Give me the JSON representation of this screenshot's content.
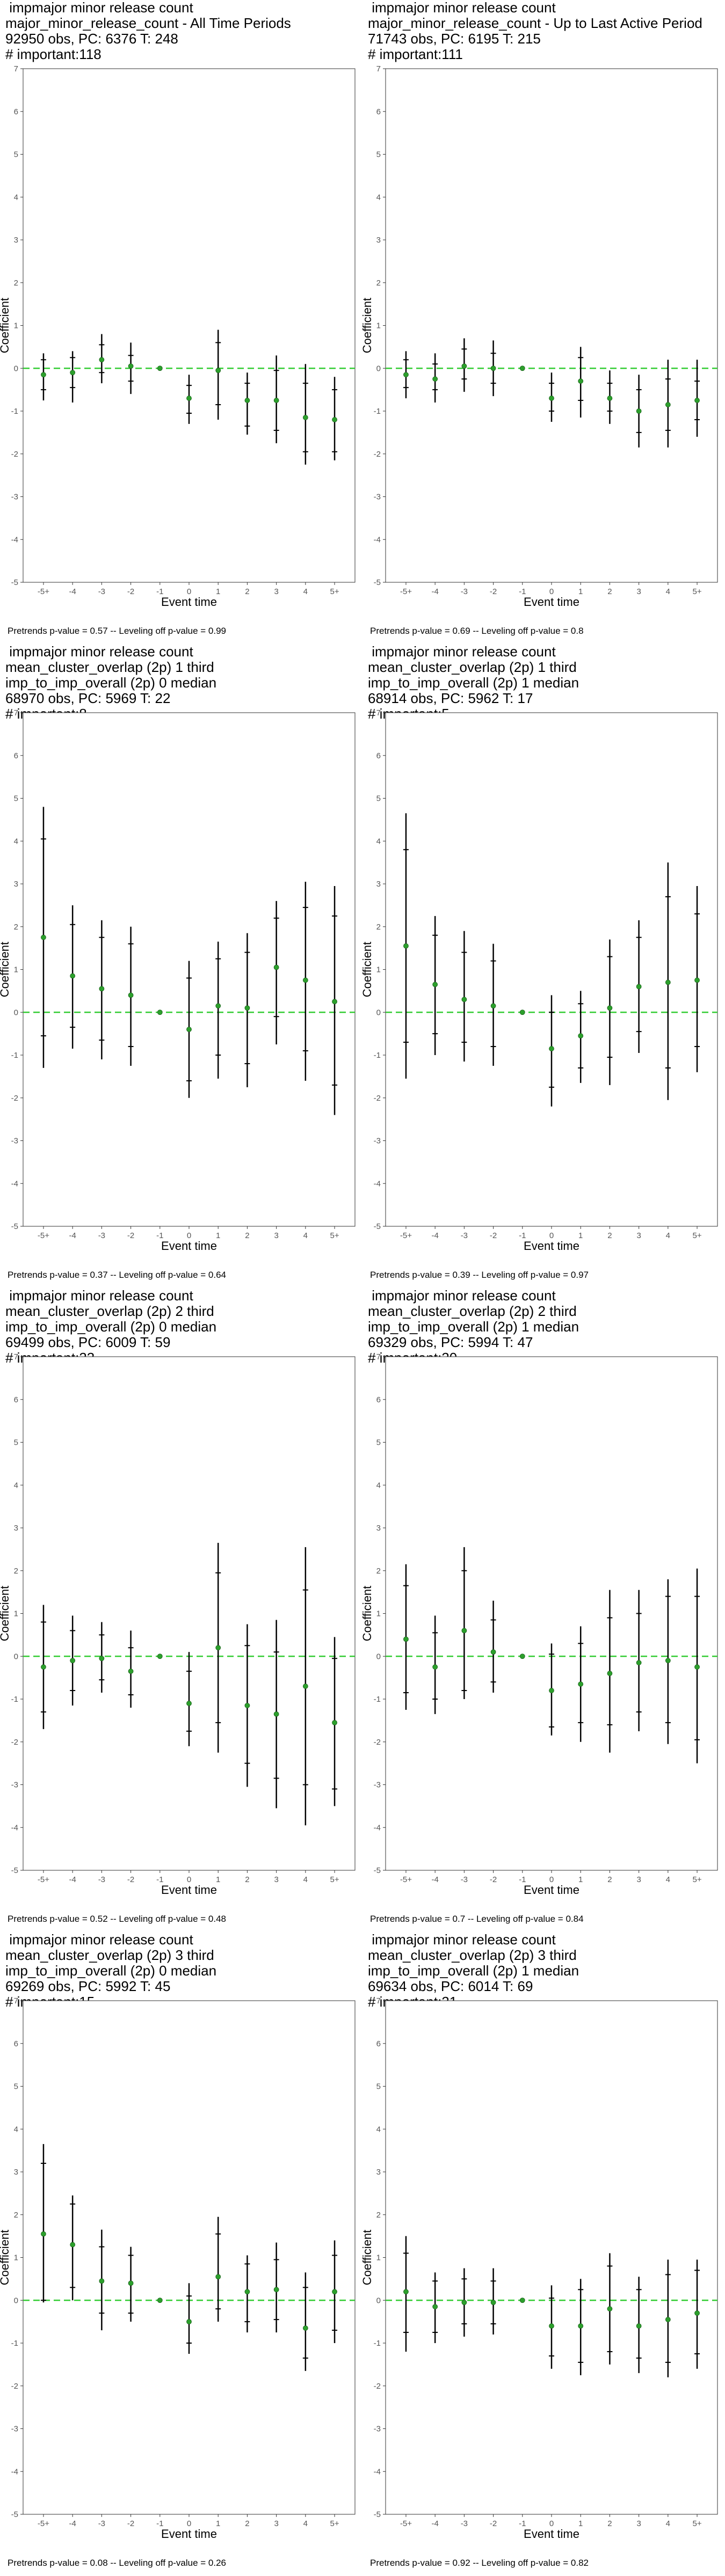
{
  "chart_data": [
    {
      "type": "scatter",
      "title_lines": [
        " impmajor minor release count",
        "major_minor_release_count - All Time Periods",
        "92950 obs, PC: 6376 T: 248",
        "# important:118"
      ],
      "footer": "Pretrends p-value = 0.57 -- Leveling off p-value = 0.99",
      "xlabel": "Event time",
      "ylabel": "Coefficient",
      "categories": [
        "-5+",
        "-4",
        "-3",
        "-2",
        "-1",
        "0",
        "1",
        "2",
        "3",
        "4",
        "5+"
      ],
      "ylim": [
        -5,
        7
      ],
      "yticks": [
        -5,
        -4,
        -3,
        -2,
        -1,
        0,
        1,
        2,
        3,
        4,
        5,
        6,
        7
      ],
      "estimates": [
        -0.15,
        -0.1,
        0.2,
        0.05,
        0.0,
        -0.7,
        -0.05,
        -0.75,
        -0.75,
        -1.15,
        -1.2
      ],
      "ci95_low": [
        -0.75,
        -0.8,
        -0.35,
        -0.6,
        0.0,
        -1.3,
        -1.2,
        -1.55,
        -1.75,
        -2.25,
        -2.15
      ],
      "ci95_high": [
        0.35,
        0.4,
        0.8,
        0.6,
        0.0,
        -0.15,
        0.9,
        -0.1,
        0.3,
        0.1,
        -0.2
      ],
      "ci_inner_low": [
        -0.5,
        -0.45,
        -0.1,
        -0.3,
        0.0,
        -1.05,
        -0.85,
        -1.35,
        -1.45,
        -1.95,
        -1.95
      ],
      "ci_inner_high": [
        0.2,
        0.25,
        0.55,
        0.3,
        0.0,
        -0.4,
        0.6,
        -0.35,
        -0.05,
        -0.35,
        -0.5
      ],
      "reference_line": 0,
      "colors": {
        "point": "#2ca02c",
        "ci": "#000000",
        "reference": "#33cc33"
      }
    },
    {
      "type": "scatter",
      "title_lines": [
        " impmajor minor release count",
        "major_minor_release_count - Up to Last Active Period",
        "71743 obs, PC: 6195 T: 215",
        "# important:111"
      ],
      "footer": "Pretrends p-value = 0.69 -- Leveling off p-value = 0.8",
      "xlabel": "Event time",
      "ylabel": "Coefficient",
      "categories": [
        "-5+",
        "-4",
        "-3",
        "-2",
        "-1",
        "0",
        "1",
        "2",
        "3",
        "4",
        "5+"
      ],
      "ylim": [
        -5,
        7
      ],
      "yticks": [
        -5,
        -4,
        -3,
        -2,
        -1,
        0,
        1,
        2,
        3,
        4,
        5,
        6,
        7
      ],
      "estimates": [
        -0.15,
        -0.25,
        0.05,
        0.0,
        0.0,
        -0.7,
        -0.3,
        -0.7,
        -1.0,
        -0.85,
        -0.75
      ],
      "ci95_low": [
        -0.7,
        -0.8,
        -0.55,
        -0.65,
        0.0,
        -1.25,
        -1.15,
        -1.3,
        -1.85,
        -1.85,
        -1.6
      ],
      "ci95_high": [
        0.4,
        0.35,
        0.7,
        0.65,
        0.0,
        -0.1,
        0.5,
        -0.05,
        -0.15,
        0.2,
        0.2
      ],
      "ci_inner_low": [
        -0.45,
        -0.5,
        -0.25,
        -0.35,
        0.0,
        -1.0,
        -0.75,
        -1.0,
        -1.5,
        -1.45,
        -1.2
      ],
      "ci_inner_high": [
        0.2,
        0.1,
        0.45,
        0.35,
        0.0,
        -0.35,
        0.25,
        -0.35,
        -0.5,
        -0.25,
        -0.3
      ],
      "reference_line": 0,
      "colors": {
        "point": "#2ca02c",
        "ci": "#000000",
        "reference": "#33cc33"
      }
    },
    {
      "type": "scatter",
      "title_lines": [
        " impmajor minor release count",
        "mean_cluster_overlap (2p) 1 third",
        "imp_to_imp_overall (2p) 0 median",
        "68970 obs, PC: 5969 T: 22",
        "# important:8"
      ],
      "footer": "Pretrends p-value = 0.37 -- Leveling off p-value = 0.64",
      "xlabel": "Event time",
      "ylabel": "Coefficient",
      "categories": [
        "-5+",
        "-4",
        "-3",
        "-2",
        "-1",
        "0",
        "1",
        "2",
        "3",
        "4",
        "5+"
      ],
      "ylim": [
        -5,
        7
      ],
      "yticks": [
        -5,
        -4,
        -3,
        -2,
        -1,
        0,
        1,
        2,
        3,
        4,
        5,
        6,
        7
      ],
      "estimates": [
        1.75,
        0.85,
        0.55,
        0.4,
        0.0,
        -0.4,
        0.15,
        0.1,
        1.05,
        0.75,
        0.25
      ],
      "ci95_low": [
        -1.3,
        -0.85,
        -1.1,
        -1.25,
        0.0,
        -2.0,
        -1.55,
        -1.75,
        -0.75,
        -1.6,
        -2.4
      ],
      "ci95_high": [
        4.8,
        2.5,
        2.15,
        2.0,
        0.0,
        1.2,
        1.65,
        1.85,
        2.6,
        3.05,
        2.95
      ],
      "ci_inner_low": [
        -0.55,
        -0.35,
        -0.65,
        -0.8,
        0.0,
        -1.6,
        -1.0,
        -1.2,
        -0.1,
        -0.9,
        -1.7
      ],
      "ci_inner_high": [
        4.05,
        2.05,
        1.75,
        1.6,
        0.0,
        0.8,
        1.25,
        1.4,
        2.2,
        2.45,
        2.25
      ],
      "reference_line": 0,
      "colors": {
        "point": "#2ca02c",
        "ci": "#000000",
        "reference": "#33cc33"
      }
    },
    {
      "type": "scatter",
      "title_lines": [
        " impmajor minor release count",
        "mean_cluster_overlap (2p) 1 third",
        "imp_to_imp_overall (2p) 1 median",
        "68914 obs, PC: 5962 T: 17",
        "# important:5"
      ],
      "footer": "Pretrends p-value = 0.39 -- Leveling off p-value = 0.97",
      "xlabel": "Event time",
      "ylabel": "Coefficient",
      "categories": [
        "-5+",
        "-4",
        "-3",
        "-2",
        "-1",
        "0",
        "1",
        "2",
        "3",
        "4",
        "5+"
      ],
      "ylim": [
        -5,
        7
      ],
      "yticks": [
        -5,
        -4,
        -3,
        -2,
        -1,
        0,
        1,
        2,
        3,
        4,
        5,
        6,
        7
      ],
      "estimates": [
        1.55,
        0.65,
        0.3,
        0.15,
        0.0,
        -0.85,
        -0.55,
        0.1,
        0.6,
        0.7,
        0.75
      ],
      "ci95_low": [
        -1.55,
        -1.0,
        -1.15,
        -1.25,
        0.0,
        -2.2,
        -1.65,
        -1.7,
        -0.95,
        -2.05,
        -1.4
      ],
      "ci95_high": [
        4.65,
        2.25,
        1.9,
        1.6,
        0.0,
        0.4,
        0.5,
        1.7,
        2.15,
        3.5,
        2.95
      ],
      "ci_inner_low": [
        -0.7,
        -0.5,
        -0.7,
        -0.8,
        0.0,
        -1.75,
        -1.3,
        -1.05,
        -0.45,
        -1.3,
        -0.8
      ],
      "ci_inner_high": [
        3.8,
        1.8,
        1.4,
        1.2,
        0.0,
        0.0,
        0.2,
        1.3,
        1.75,
        2.7,
        2.3
      ],
      "reference_line": 0,
      "colors": {
        "point": "#2ca02c",
        "ci": "#000000",
        "reference": "#33cc33"
      }
    },
    {
      "type": "scatter",
      "title_lines": [
        " impmajor minor release count",
        "mean_cluster_overlap (2p) 2 third",
        "imp_to_imp_overall (2p) 0 median",
        "69499 obs, PC: 6009 T: 59",
        "# important:23"
      ],
      "footer": "Pretrends p-value = 0.52 -- Leveling off p-value = 0.48",
      "xlabel": "Event time",
      "ylabel": "Coefficient",
      "categories": [
        "-5+",
        "-4",
        "-3",
        "-2",
        "-1",
        "0",
        "1",
        "2",
        "3",
        "4",
        "5+"
      ],
      "ylim": [
        -5,
        7
      ],
      "yticks": [
        -5,
        -4,
        -3,
        -2,
        -1,
        0,
        1,
        2,
        3,
        4,
        5,
        6,
        7
      ],
      "estimates": [
        -0.25,
        -0.1,
        -0.05,
        -0.35,
        0.0,
        -1.1,
        0.2,
        -1.15,
        -1.35,
        -0.7,
        -1.55
      ],
      "ci95_low": [
        -1.7,
        -1.15,
        -0.85,
        -1.2,
        0.0,
        -2.1,
        -2.25,
        -3.05,
        -3.55,
        -3.95,
        -3.5
      ],
      "ci95_high": [
        1.2,
        0.95,
        0.8,
        0.6,
        0.0,
        0.1,
        2.65,
        0.75,
        0.85,
        2.55,
        0.45
      ],
      "ci_inner_low": [
        -1.3,
        -0.8,
        -0.55,
        -0.9,
        0.0,
        -1.75,
        -1.55,
        -2.5,
        -2.85,
        -3.0,
        -3.1
      ],
      "ci_inner_high": [
        0.8,
        0.6,
        0.5,
        0.2,
        0.0,
        -0.35,
        1.95,
        0.25,
        0.1,
        1.55,
        -0.05
      ],
      "reference_line": 0,
      "colors": {
        "point": "#2ca02c",
        "ci": "#000000",
        "reference": "#33cc33"
      }
    },
    {
      "type": "scatter",
      "title_lines": [
        " impmajor minor release count",
        "mean_cluster_overlap (2p) 2 third",
        "imp_to_imp_overall (2p) 1 median",
        "69329 obs, PC: 5994 T: 47",
        "# important:20"
      ],
      "footer": "Pretrends p-value = 0.7 -- Leveling off p-value = 0.84",
      "xlabel": "Event time",
      "ylabel": "Coefficient",
      "categories": [
        "-5+",
        "-4",
        "-3",
        "-2",
        "-1",
        "0",
        "1",
        "2",
        "3",
        "4",
        "5+"
      ],
      "ylim": [
        -5,
        7
      ],
      "yticks": [
        -5,
        -4,
        -3,
        -2,
        -1,
        0,
        1,
        2,
        3,
        4,
        5,
        6,
        7
      ],
      "estimates": [
        0.4,
        -0.25,
        0.6,
        0.1,
        0.0,
        -0.8,
        -0.65,
        -0.4,
        -0.15,
        -0.1,
        -0.25
      ],
      "ci95_low": [
        -1.25,
        -1.35,
        -1.0,
        -0.85,
        0.0,
        -1.85,
        -2.0,
        -2.25,
        -1.75,
        -2.05,
        -2.5
      ],
      "ci95_high": [
        2.15,
        0.95,
        2.55,
        1.3,
        0.0,
        0.3,
        0.7,
        1.55,
        1.55,
        1.8,
        2.05
      ],
      "ci_inner_low": [
        -0.85,
        -1.0,
        -0.8,
        -0.6,
        0.0,
        -1.65,
        -1.55,
        -1.6,
        -1.3,
        -1.55,
        -1.95
      ],
      "ci_inner_high": [
        1.65,
        0.55,
        2.0,
        0.85,
        0.0,
        0.05,
        0.3,
        0.9,
        1.0,
        1.4,
        1.4
      ],
      "reference_line": 0,
      "colors": {
        "point": "#2ca02c",
        "ci": "#000000",
        "reference": "#33cc33"
      }
    },
    {
      "type": "scatter",
      "title_lines": [
        " impmajor minor release count",
        "mean_cluster_overlap (2p) 3 third",
        "imp_to_imp_overall (2p) 0 median",
        "69269 obs, PC: 5992 T: 45",
        "# important:15"
      ],
      "footer": "Pretrends p-value = 0.08 -- Leveling off p-value = 0.26",
      "xlabel": "Event time",
      "ylabel": "Coefficient",
      "categories": [
        "-5+",
        "-4",
        "-3",
        "-2",
        "-1",
        "0",
        "1",
        "2",
        "3",
        "4",
        "5+"
      ],
      "ylim": [
        -5,
        7
      ],
      "yticks": [
        -5,
        -4,
        -3,
        -2,
        -1,
        0,
        1,
        2,
        3,
        4,
        5,
        6,
        7
      ],
      "estimates": [
        1.55,
        1.3,
        0.45,
        0.4,
        0.0,
        -0.5,
        0.55,
        0.2,
        0.25,
        -0.65,
        0.2
      ],
      "ci95_low": [
        -0.05,
        0.0,
        -0.7,
        -0.5,
        0.0,
        -1.25,
        -0.5,
        -0.75,
        -0.75,
        -1.65,
        -1.0
      ],
      "ci95_high": [
        3.65,
        2.45,
        1.65,
        1.25,
        0.0,
        0.4,
        1.95,
        1.05,
        1.35,
        0.65,
        1.4
      ],
      "ci_inner_low": [
        0.0,
        0.3,
        -0.3,
        -0.3,
        0.0,
        -1.0,
        -0.2,
        -0.5,
        -0.45,
        -1.35,
        -0.7
      ],
      "ci_inner_high": [
        3.2,
        2.25,
        1.25,
        1.05,
        0.0,
        0.1,
        1.55,
        0.85,
        0.95,
        0.3,
        1.05
      ],
      "reference_line": 0,
      "colors": {
        "point": "#2ca02c",
        "ci": "#000000",
        "reference": "#33cc33"
      }
    },
    {
      "type": "scatter",
      "title_lines": [
        " impmajor minor release count",
        "mean_cluster_overlap (2p) 3 third",
        "imp_to_imp_overall (2p) 1 median",
        "69634 obs, PC: 6014 T: 69",
        "# important:21"
      ],
      "footer": "Pretrends p-value = 0.92 -- Leveling off p-value = 0.82",
      "xlabel": "Event time",
      "ylabel": "Coefficient",
      "categories": [
        "-5+",
        "-4",
        "-3",
        "-2",
        "-1",
        "0",
        "1",
        "2",
        "3",
        "4",
        "5+"
      ],
      "ylim": [
        -5,
        7
      ],
      "yticks": [
        -5,
        -4,
        -3,
        -2,
        -1,
        0,
        1,
        2,
        3,
        4,
        5,
        6,
        7
      ],
      "estimates": [
        0.2,
        -0.15,
        -0.05,
        -0.05,
        0.0,
        -0.6,
        -0.6,
        -0.2,
        -0.6,
        -0.45,
        -0.3
      ],
      "ci95_low": [
        -1.2,
        -1.0,
        -0.85,
        -0.8,
        0.0,
        -1.6,
        -1.75,
        -1.5,
        -1.7,
        -1.8,
        -1.6
      ],
      "ci95_high": [
        1.5,
        0.65,
        0.75,
        0.75,
        0.0,
        0.35,
        0.5,
        1.1,
        0.55,
        0.95,
        0.95
      ],
      "ci_inner_low": [
        -0.75,
        -0.75,
        -0.55,
        -0.55,
        0.0,
        -1.3,
        -1.45,
        -1.2,
        -1.35,
        -1.45,
        -1.25
      ],
      "ci_inner_high": [
        1.1,
        0.45,
        0.5,
        0.45,
        0.0,
        0.05,
        0.25,
        0.8,
        0.25,
        0.6,
        0.7
      ],
      "reference_line": 0,
      "colors": {
        "point": "#2ca02c",
        "ci": "#000000",
        "reference": "#33cc33"
      }
    }
  ]
}
